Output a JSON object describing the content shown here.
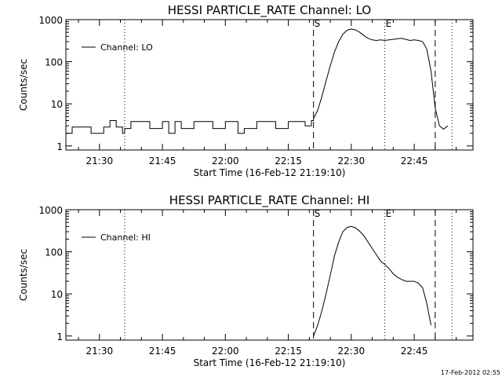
{
  "chart_data": [
    {
      "type": "line",
      "title": "HESSI PARTICLE_RATE Channel: LO",
      "xlabel": "Start Time (16-Feb-12 21:19:10)",
      "ylabel": "Counts/sec",
      "yscale": "log",
      "xlim": [
        "21:22:00",
        "22:59:00"
      ],
      "ylim": [
        0.8,
        1000
      ],
      "x_ticks": [
        "21:30",
        "21:45",
        "22:00",
        "22:15",
        "22:30",
        "22:45"
      ],
      "y_ticks": [
        "1",
        "10",
        "100",
        "1000"
      ],
      "legend": {
        "placement": "top-left",
        "entries": [
          "Channel: LO"
        ]
      },
      "markers": {
        "dashed": [
          {
            "time": "22:21:00",
            "label": "S"
          },
          {
            "time": "22:50:00",
            "label": ""
          }
        ],
        "dotted": [
          {
            "time": "21:36:00",
            "label": ""
          },
          {
            "time": "22:38:00",
            "label": "E"
          },
          {
            "time": "22:54:00",
            "label": ""
          }
        ]
      },
      "series": [
        {
          "name": "Channel: LO",
          "baseline": [
            {
              "from": "21:22:00",
              "to": "21:36:00",
              "low": 2.0,
              "high": 2.8,
              "spikes": [
                4.0
              ]
            },
            {
              "from": "21:36:00",
              "to": "22:19:00",
              "low": 2.6,
              "high": 3.8,
              "spikes": [
                2.0
              ]
            },
            {
              "from": "22:19:00",
              "to": "22:21:00",
              "low": 3.0,
              "high": 4.0,
              "spikes": []
            }
          ],
          "x": [
            "22:21:00",
            "22:22:00",
            "22:23:00",
            "22:24:00",
            "22:25:00",
            "22:26:00",
            "22:27:00",
            "22:28:00",
            "22:29:00",
            "22:30:00",
            "22:31:00",
            "22:32:00",
            "22:33:00",
            "22:34:00",
            "22:35:00",
            "22:36:00",
            "22:37:00",
            "22:38:00",
            "22:39:00",
            "22:40:00",
            "22:41:00",
            "22:42:00",
            "22:43:00",
            "22:44:00",
            "22:45:00",
            "22:46:00",
            "22:47:00",
            "22:48:00",
            "22:49:00",
            "22:50:00",
            "22:51:00",
            "22:52:00",
            "22:53:00"
          ],
          "y": [
            4.5,
            7,
            15,
            35,
            80,
            170,
            300,
            450,
            560,
            600,
            570,
            500,
            420,
            360,
            330,
            320,
            330,
            320,
            330,
            340,
            350,
            360,
            340,
            320,
            330,
            320,
            300,
            200,
            60,
            8,
            3,
            2.5,
            3
          ]
        }
      ]
    },
    {
      "type": "line",
      "title": "HESSI PARTICLE_RATE Channel: HI",
      "xlabel": "Start Time (16-Feb-12 21:19:10)",
      "ylabel": "Counts/sec",
      "yscale": "log",
      "xlim": [
        "21:22:00",
        "22:59:00"
      ],
      "ylim": [
        0.8,
        1000
      ],
      "x_ticks": [
        "21:30",
        "21:45",
        "22:00",
        "22:15",
        "22:30",
        "22:45"
      ],
      "y_ticks": [
        "1",
        "10",
        "100",
        "1000"
      ],
      "legend": {
        "placement": "top-left",
        "entries": [
          "Channel: HI"
        ]
      },
      "markers": {
        "dashed": [
          {
            "time": "22:21:00",
            "label": "S"
          },
          {
            "time": "22:50:00",
            "label": ""
          }
        ],
        "dotted": [
          {
            "time": "21:36:00",
            "label": ""
          },
          {
            "time": "22:38:00",
            "label": "E"
          },
          {
            "time": "22:54:00",
            "label": ""
          }
        ]
      },
      "series": [
        {
          "name": "Channel: HI",
          "baseline": [],
          "x": [
            "22:21:00",
            "22:22:00",
            "22:23:00",
            "22:24:00",
            "22:25:00",
            "22:26:00",
            "22:27:00",
            "22:28:00",
            "22:29:00",
            "22:30:00",
            "22:31:00",
            "22:32:00",
            "22:33:00",
            "22:34:00",
            "22:35:00",
            "22:36:00",
            "22:37:00",
            "22:38:00",
            "22:39:00",
            "22:40:00",
            "22:41:00",
            "22:42:00",
            "22:43:00",
            "22:44:00",
            "22:45:00",
            "22:46:00",
            "22:47:00",
            "22:48:00",
            "22:49:00"
          ],
          "y": [
            1.0,
            1.8,
            4,
            10,
            28,
            80,
            170,
            300,
            380,
            400,
            370,
            310,
            240,
            170,
            120,
            85,
            60,
            50,
            40,
            30,
            25,
            22,
            20,
            20,
            20,
            18,
            14,
            6,
            1.8
          ]
        }
      ]
    }
  ],
  "footer": {
    "timestamp": "17-Feb-2012 02:55"
  }
}
